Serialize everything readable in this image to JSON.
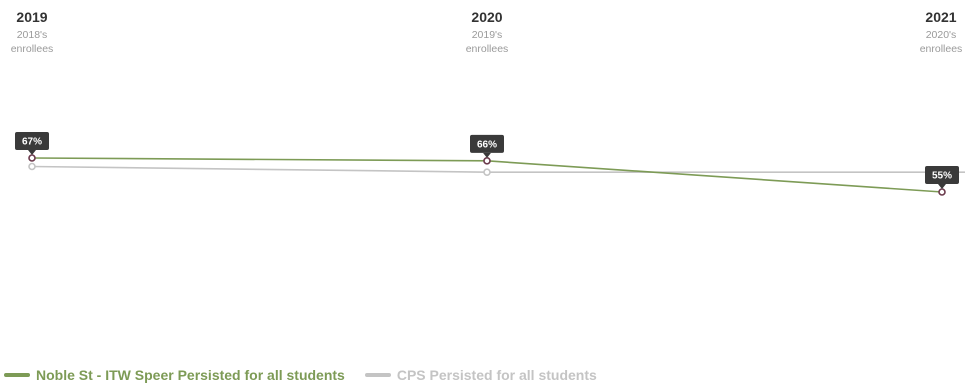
{
  "chart_data": {
    "type": "line",
    "categories": [
      {
        "year": "2019",
        "sub1": "2018's",
        "sub2": "enrollees"
      },
      {
        "year": "2020",
        "sub1": "2019's",
        "sub2": "enrollees"
      },
      {
        "year": "2021",
        "sub1": "2020's",
        "sub2": "enrollees"
      }
    ],
    "ylim": [
      0,
      100
    ],
    "grid": false,
    "legend_position": "bottom-left",
    "series": [
      {
        "name": "Noble St - ITW Speer Persisted for all students",
        "values": [
          67,
          66,
          55
        ],
        "labels": [
          "67%",
          "66%",
          "55%"
        ],
        "color": "#7d9b56",
        "marker_color": "#6b3a4c"
      },
      {
        "name": "CPS Persisted for all students",
        "values": [
          64,
          62,
          62
        ],
        "color": "#c4c4c4",
        "marker_color": "#c4c4c4"
      }
    ]
  }
}
